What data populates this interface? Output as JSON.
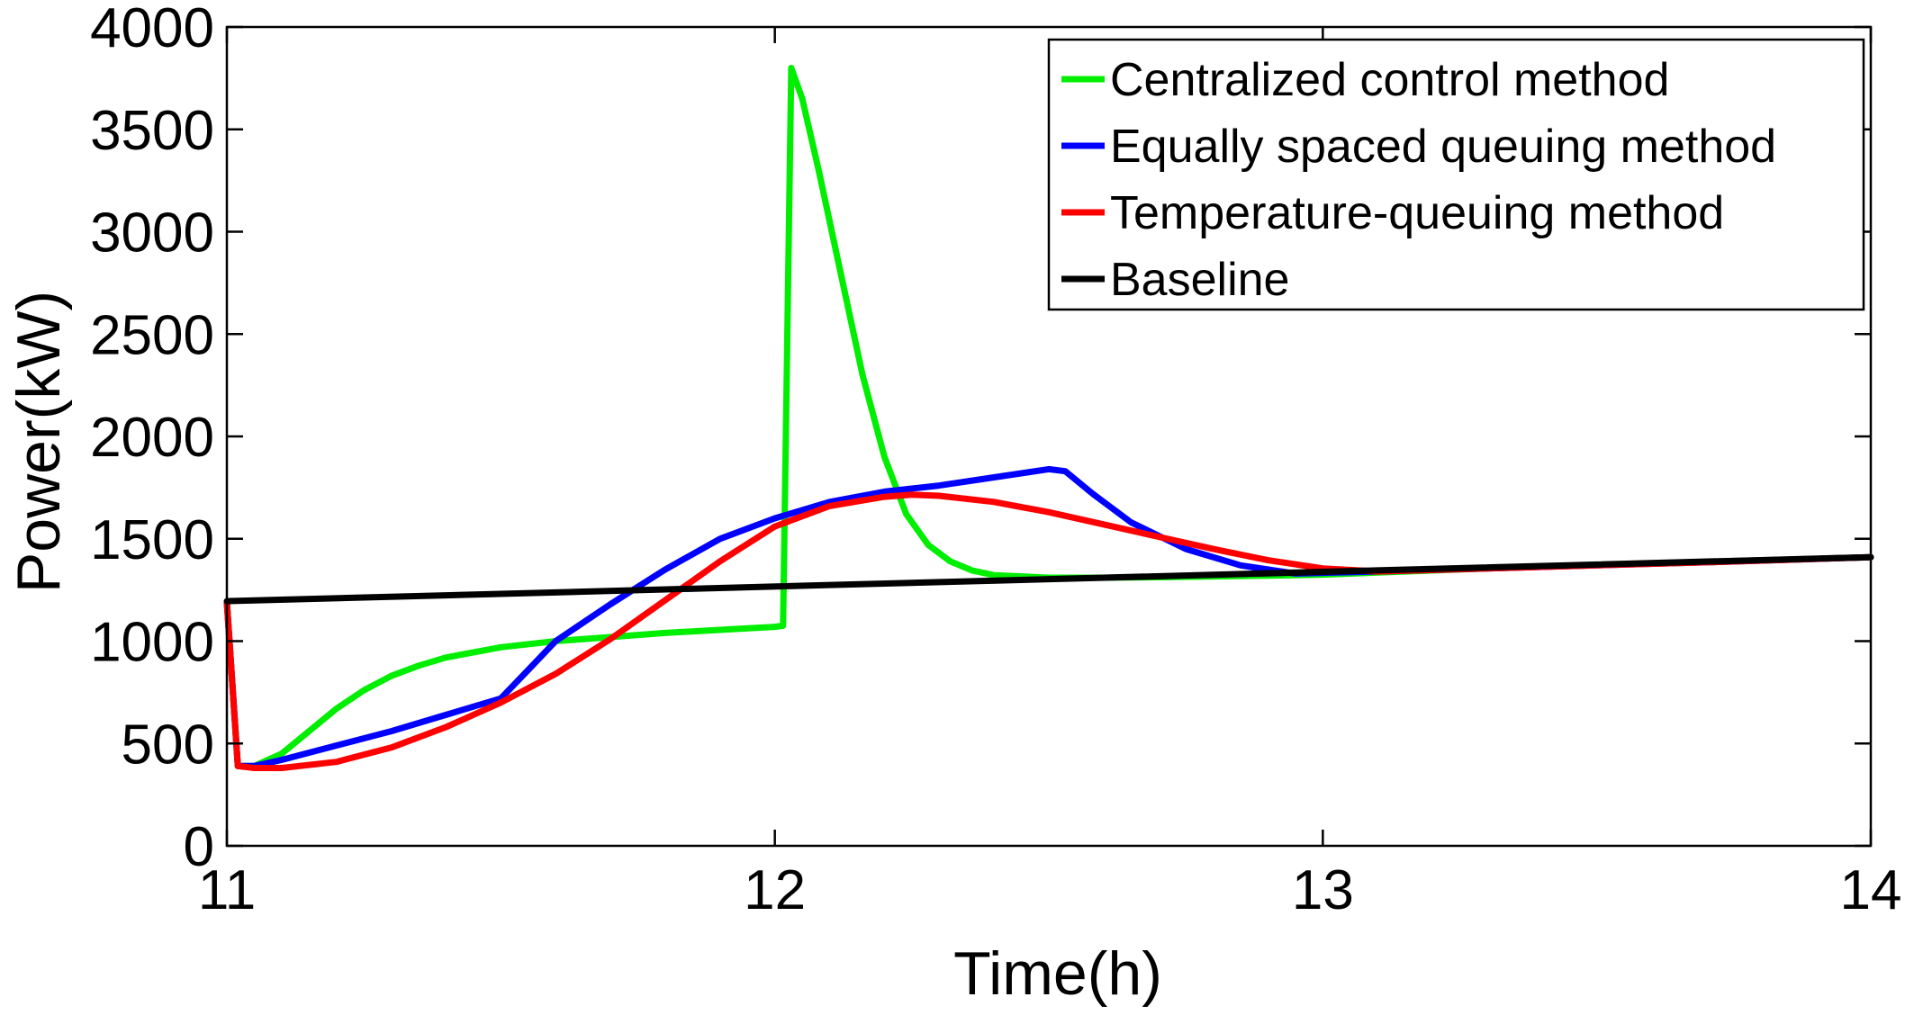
{
  "chart_data": {
    "type": "line",
    "title": "",
    "xlabel": "Time(h)",
    "ylabel": "Power(kW)",
    "xlim": [
      11,
      14
    ],
    "ylim": [
      0,
      4000
    ],
    "xticks": [
      11,
      12,
      13,
      14
    ],
    "yticks": [
      0,
      500,
      1000,
      1500,
      2000,
      2500,
      3000,
      3500,
      4000
    ],
    "grid": false,
    "legend_position": "top-right",
    "series": [
      {
        "name": "Centralized control method",
        "color": "#00ee00",
        "points": [
          [
            11.0,
            1190
          ],
          [
            11.02,
            390
          ],
          [
            11.05,
            390
          ],
          [
            11.1,
            450
          ],
          [
            11.15,
            560
          ],
          [
            11.2,
            670
          ],
          [
            11.25,
            760
          ],
          [
            11.3,
            830
          ],
          [
            11.35,
            880
          ],
          [
            11.4,
            920
          ],
          [
            11.5,
            970
          ],
          [
            11.6,
            1000
          ],
          [
            11.7,
            1020
          ],
          [
            11.8,
            1040
          ],
          [
            11.9,
            1055
          ],
          [
            12.0,
            1070
          ],
          [
            12.015,
            1075
          ],
          [
            12.03,
            3800
          ],
          [
            12.05,
            3650
          ],
          [
            12.08,
            3300
          ],
          [
            12.12,
            2800
          ],
          [
            12.16,
            2300
          ],
          [
            12.2,
            1900
          ],
          [
            12.24,
            1620
          ],
          [
            12.28,
            1470
          ],
          [
            12.32,
            1390
          ],
          [
            12.36,
            1345
          ],
          [
            12.4,
            1322
          ],
          [
            12.5,
            1310
          ],
          [
            12.6,
            1310
          ],
          [
            12.7,
            1312
          ],
          [
            12.8,
            1316
          ],
          [
            12.9,
            1320
          ],
          [
            13.0,
            1325
          ],
          [
            13.2,
            1345
          ],
          [
            13.4,
            1365
          ],
          [
            13.6,
            1380
          ],
          [
            13.8,
            1395
          ],
          [
            14.0,
            1410
          ]
        ]
      },
      {
        "name": "Equally spaced queuing method",
        "color": "#0000ff",
        "points": [
          [
            11.0,
            1190
          ],
          [
            11.02,
            390
          ],
          [
            11.05,
            390
          ],
          [
            11.1,
            420
          ],
          [
            11.2,
            490
          ],
          [
            11.3,
            560
          ],
          [
            11.4,
            640
          ],
          [
            11.5,
            720
          ],
          [
            11.55,
            860
          ],
          [
            11.6,
            1000
          ],
          [
            11.7,
            1180
          ],
          [
            11.8,
            1350
          ],
          [
            11.9,
            1500
          ],
          [
            12.0,
            1600
          ],
          [
            12.1,
            1680
          ],
          [
            12.2,
            1730
          ],
          [
            12.3,
            1760
          ],
          [
            12.4,
            1800
          ],
          [
            12.5,
            1840
          ],
          [
            12.53,
            1830
          ],
          [
            12.58,
            1720
          ],
          [
            12.65,
            1580
          ],
          [
            12.75,
            1450
          ],
          [
            12.85,
            1370
          ],
          [
            12.95,
            1330
          ],
          [
            13.1,
            1340
          ],
          [
            13.3,
            1355
          ],
          [
            13.5,
            1370
          ],
          [
            13.7,
            1385
          ],
          [
            14.0,
            1410
          ]
        ]
      },
      {
        "name": "Temperature-queuing method",
        "color": "#ff0000",
        "points": [
          [
            11.0,
            1190
          ],
          [
            11.02,
            390
          ],
          [
            11.05,
            380
          ],
          [
            11.1,
            380
          ],
          [
            11.2,
            410
          ],
          [
            11.3,
            480
          ],
          [
            11.4,
            580
          ],
          [
            11.5,
            700
          ],
          [
            11.6,
            840
          ],
          [
            11.7,
            1010
          ],
          [
            11.8,
            1200
          ],
          [
            11.9,
            1390
          ],
          [
            12.0,
            1560
          ],
          [
            12.1,
            1660
          ],
          [
            12.2,
            1705
          ],
          [
            12.25,
            1715
          ],
          [
            12.3,
            1710
          ],
          [
            12.4,
            1680
          ],
          [
            12.5,
            1630
          ],
          [
            12.6,
            1570
          ],
          [
            12.7,
            1510
          ],
          [
            12.8,
            1450
          ],
          [
            12.9,
            1395
          ],
          [
            13.0,
            1355
          ],
          [
            13.1,
            1340
          ],
          [
            13.3,
            1355
          ],
          [
            13.5,
            1370
          ],
          [
            13.7,
            1385
          ],
          [
            14.0,
            1410
          ]
        ]
      },
      {
        "name": "Baseline",
        "color": "#000000",
        "points": [
          [
            11.0,
            1195
          ],
          [
            14.0,
            1410
          ]
        ]
      }
    ]
  }
}
